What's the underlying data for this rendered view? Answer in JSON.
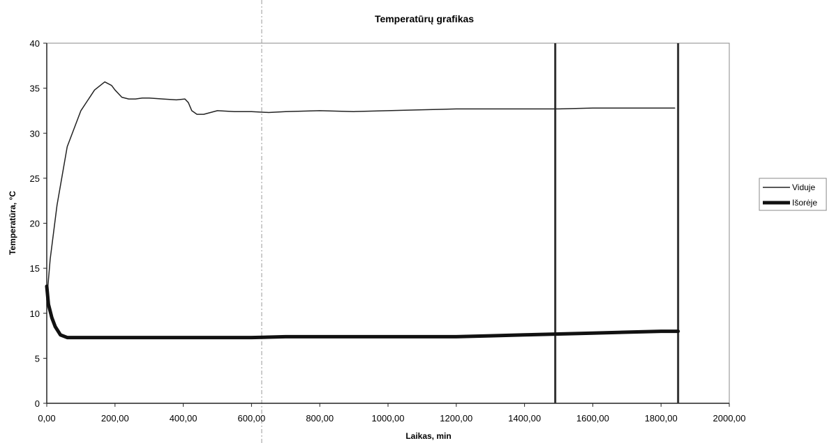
{
  "chart_data": {
    "type": "line",
    "title": "Temperatūrų grafikas",
    "xlabel": "Laikas, min",
    "ylabel": "Temperatūra, °C",
    "xlim": [
      0,
      2000
    ],
    "ylim": [
      0,
      40
    ],
    "x_ticks": [
      0,
      200,
      400,
      600,
      800,
      1000,
      1200,
      1400,
      1600,
      1800,
      2000
    ],
    "x_tick_labels": [
      "0,00",
      "200,00",
      "400,00",
      "600,00",
      "800,00",
      "1000,00",
      "1200,00",
      "1400,00",
      "1600,00",
      "1800,00",
      "2000,00"
    ],
    "y_ticks": [
      0,
      5,
      10,
      15,
      20,
      25,
      30,
      35,
      40
    ],
    "y_tick_labels": [
      "0",
      "5",
      "10",
      "15",
      "20",
      "25",
      "30",
      "35",
      "40"
    ],
    "grid": false,
    "legend_position": "right",
    "vertical_markers": [
      1490,
      1850
    ],
    "series": [
      {
        "name": "Viduje",
        "color": "#222222",
        "x": [
          0,
          10,
          30,
          60,
          100,
          140,
          170,
          190,
          200,
          220,
          240,
          260,
          280,
          300,
          340,
          380,
          405,
          415,
          425,
          440,
          460,
          500,
          550,
          600,
          650,
          700,
          800,
          900,
          1000,
          1100,
          1200,
          1300,
          1400,
          1500,
          1600,
          1700,
          1800,
          1840
        ],
        "y": [
          11.5,
          16,
          22,
          28.5,
          32.5,
          34.8,
          35.7,
          35.3,
          34.8,
          34,
          33.8,
          33.8,
          33.9,
          33.9,
          33.8,
          33.7,
          33.8,
          33.4,
          32.5,
          32.1,
          32.1,
          32.5,
          32.4,
          32.4,
          32.3,
          32.4,
          32.5,
          32.4,
          32.5,
          32.6,
          32.7,
          32.7,
          32.7,
          32.7,
          32.8,
          32.8,
          32.8,
          32.8
        ]
      },
      {
        "name": "Išorėje",
        "color": "#111111",
        "x": [
          0,
          5,
          15,
          25,
          40,
          60,
          100,
          200,
          300,
          400,
          500,
          600,
          700,
          800,
          900,
          1000,
          1100,
          1200,
          1300,
          1400,
          1500,
          1600,
          1700,
          1800,
          1850
        ],
        "y": [
          13,
          11,
          9.5,
          8.5,
          7.6,
          7.3,
          7.3,
          7.3,
          7.3,
          7.3,
          7.3,
          7.3,
          7.4,
          7.4,
          7.4,
          7.4,
          7.4,
          7.4,
          7.5,
          7.6,
          7.7,
          7.8,
          7.9,
          8,
          8
        ]
      }
    ]
  }
}
